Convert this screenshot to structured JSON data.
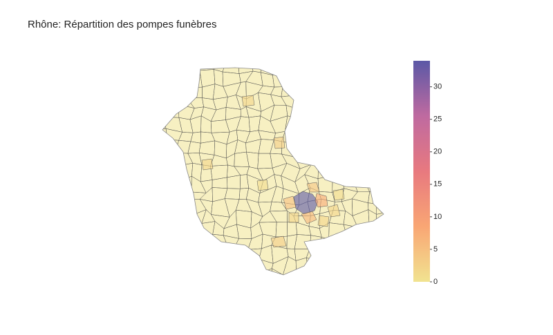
{
  "chart_data": {
    "type": "choropleth",
    "title": "Rhône: Répartition des pompes funèbres",
    "colorscale": [
      "#f1e390",
      "#f9a674",
      "#e8797f",
      "#bf6aa0",
      "#5b58a6"
    ],
    "zlim": [
      0,
      34
    ],
    "zticks": [
      0,
      5,
      10,
      15,
      20,
      25,
      30
    ],
    "values": [
      34,
      8,
      6,
      5,
      4,
      3,
      3,
      2,
      2,
      2,
      2,
      2,
      1,
      1
    ]
  }
}
